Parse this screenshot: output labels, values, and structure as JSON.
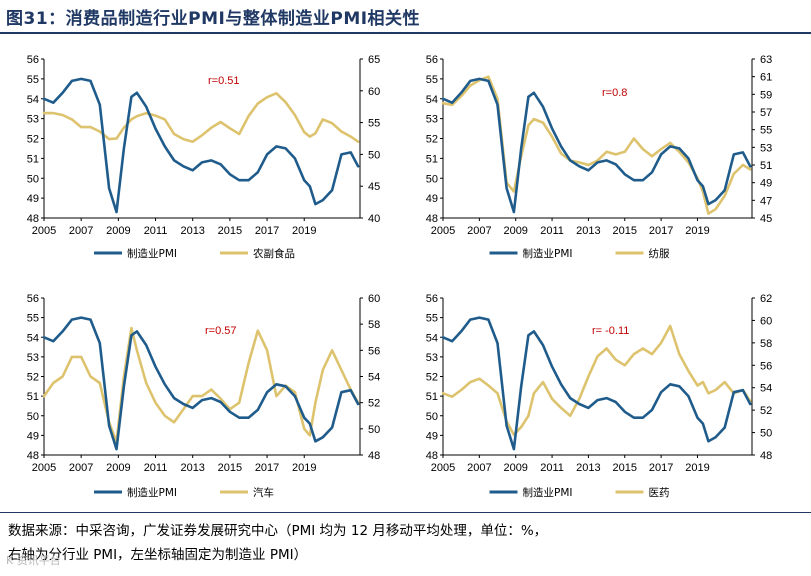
{
  "title": "图31：消费品制造行业PMI与整体制造业PMI相关性",
  "source_line1": "数据来源：中采咨询，广发证券发展研究中心（PMI 均为 12 月移动平均处理，单位：%，",
  "source_line2": "右轴为分行业 PMI，左坐标轴固定为制造业 PMI）",
  "watermark": "K 资讯平台",
  "colors": {
    "pmi": "#1f5c8c",
    "industry": "#ddc36e",
    "r_label": "#c00000"
  },
  "chart_data": [
    {
      "type": "line",
      "title": "",
      "correlation": "r=0.51",
      "x_ticks": [
        "2005",
        "2007",
        "2009",
        "2011",
        "2013",
        "2015",
        "2017",
        "2019"
      ],
      "x": [
        2005.0,
        2005.5,
        2006.0,
        2006.5,
        2007.0,
        2007.5,
        2008.0,
        2008.5,
        2008.9,
        2009.3,
        2009.7,
        2010.0,
        2010.5,
        2011.0,
        2011.5,
        2012.0,
        2012.5,
        2013.0,
        2013.5,
        2014.0,
        2014.5,
        2015.0,
        2015.5,
        2016.0,
        2016.5,
        2017.0,
        2017.5,
        2018.0,
        2018.5,
        2019.0,
        2019.3,
        2019.6,
        2020.0,
        2020.5,
        2021.0,
        2021.5,
        2021.9
      ],
      "left_axis": {
        "ylim": [
          48,
          56
        ],
        "ticks": [
          48,
          49,
          50,
          51,
          52,
          53,
          54,
          55,
          56
        ]
      },
      "right_axis": {
        "ylim": [
          40,
          65
        ],
        "ticks": [
          40,
          45,
          50,
          55,
          60,
          65
        ]
      },
      "series": [
        {
          "name": "制造业PMI",
          "axis": "left",
          "values": [
            54.0,
            53.8,
            54.3,
            54.9,
            55.0,
            54.9,
            53.7,
            49.5,
            48.3,
            51.5,
            54.1,
            54.3,
            53.6,
            52.5,
            51.6,
            50.9,
            50.6,
            50.4,
            50.8,
            50.9,
            50.7,
            50.2,
            49.9,
            49.9,
            50.3,
            51.2,
            51.6,
            51.5,
            51.0,
            49.9,
            49.6,
            48.7,
            48.9,
            49.4,
            51.2,
            51.3,
            50.6
          ]
        },
        {
          "name": "农副食品",
          "axis": "right",
          "values": [
            56.5,
            56.5,
            56.2,
            55.5,
            54.3,
            54.3,
            53.6,
            52.4,
            52.5,
            54.2,
            55.5,
            56.0,
            56.5,
            56.1,
            55.5,
            53.2,
            52.4,
            52.0,
            53.0,
            54.2,
            55.1,
            54.1,
            53.2,
            56.0,
            58.0,
            59.0,
            59.6,
            58.2,
            56.2,
            53.5,
            52.8,
            53.3,
            55.5,
            54.9,
            53.6,
            52.8,
            52.0
          ]
        }
      ],
      "legend": [
        "制造业PMI",
        "农副食品"
      ]
    },
    {
      "type": "line",
      "title": "",
      "correlation": "r=0.8",
      "x_ticks": [
        "2005",
        "2007",
        "2009",
        "2011",
        "2013",
        "2015",
        "2017",
        "2019"
      ],
      "x": [
        2005.0,
        2005.5,
        2006.0,
        2006.5,
        2007.0,
        2007.5,
        2008.0,
        2008.5,
        2008.9,
        2009.3,
        2009.7,
        2010.0,
        2010.5,
        2011.0,
        2011.5,
        2012.0,
        2012.5,
        2013.0,
        2013.5,
        2014.0,
        2014.5,
        2015.0,
        2015.5,
        2016.0,
        2016.5,
        2017.0,
        2017.5,
        2018.0,
        2018.5,
        2019.0,
        2019.3,
        2019.6,
        2020.0,
        2020.5,
        2021.0,
        2021.5,
        2021.9
      ],
      "left_axis": {
        "ylim": [
          48,
          56
        ],
        "ticks": [
          48,
          49,
          50,
          51,
          52,
          53,
          54,
          55,
          56
        ]
      },
      "right_axis": {
        "ylim": [
          45,
          63
        ],
        "ticks": [
          45,
          47,
          49,
          51,
          53,
          55,
          57,
          59,
          61,
          63
        ]
      },
      "series": [
        {
          "name": "制造业PMI",
          "axis": "left",
          "values": [
            54.0,
            53.8,
            54.3,
            54.9,
            55.0,
            54.9,
            53.7,
            49.5,
            48.3,
            51.5,
            54.1,
            54.3,
            53.6,
            52.5,
            51.6,
            50.9,
            50.6,
            50.4,
            50.8,
            50.9,
            50.7,
            50.2,
            49.9,
            49.9,
            50.3,
            51.2,
            51.6,
            51.5,
            51.0,
            49.9,
            49.6,
            48.7,
            48.9,
            49.4,
            51.2,
            51.3,
            50.6
          ]
        },
        {
          "name": "纺服",
          "axis": "right",
          "values": [
            58.0,
            57.8,
            58.8,
            60.0,
            60.6,
            61.0,
            58.5,
            49.0,
            48.0,
            52.0,
            55.5,
            56.2,
            55.8,
            54.2,
            52.3,
            51.5,
            51.3,
            51.0,
            51.5,
            52.5,
            52.2,
            52.5,
            54.0,
            52.8,
            52.0,
            52.8,
            53.5,
            52.5,
            51.3,
            49.5,
            48.0,
            45.5,
            46.0,
            47.5,
            50.0,
            51.0,
            50.5
          ]
        }
      ],
      "legend": [
        "制造业PMI",
        "纺服"
      ]
    },
    {
      "type": "line",
      "title": "",
      "correlation": "r=0.57",
      "x_ticks": [
        "2005",
        "2007",
        "2009",
        "2011",
        "2013",
        "2015",
        "2017",
        "2019"
      ],
      "x": [
        2005.0,
        2005.5,
        2006.0,
        2006.5,
        2007.0,
        2007.5,
        2008.0,
        2008.5,
        2008.9,
        2009.3,
        2009.7,
        2010.0,
        2010.5,
        2011.0,
        2011.5,
        2012.0,
        2012.5,
        2013.0,
        2013.5,
        2014.0,
        2014.5,
        2015.0,
        2015.5,
        2016.0,
        2016.5,
        2017.0,
        2017.5,
        2018.0,
        2018.5,
        2019.0,
        2019.3,
        2019.6,
        2020.0,
        2020.5,
        2021.0,
        2021.5,
        2021.9
      ],
      "left_axis": {
        "ylim": [
          48,
          56
        ],
        "ticks": [
          48,
          49,
          50,
          51,
          52,
          53,
          54,
          55,
          56
        ]
      },
      "right_axis": {
        "ylim": [
          48,
          60
        ],
        "ticks": [
          48,
          50,
          52,
          54,
          56,
          58,
          60
        ]
      },
      "series": [
        {
          "name": "制造业PMI",
          "axis": "left",
          "values": [
            54.0,
            53.8,
            54.3,
            54.9,
            55.0,
            54.9,
            53.7,
            49.5,
            48.3,
            51.5,
            54.1,
            54.3,
            53.6,
            52.5,
            51.6,
            50.9,
            50.6,
            50.4,
            50.8,
            50.9,
            50.7,
            50.2,
            49.9,
            49.9,
            50.3,
            51.2,
            51.6,
            51.5,
            51.0,
            49.9,
            49.6,
            48.7,
            48.9,
            49.4,
            51.2,
            51.3,
            50.6
          ]
        },
        {
          "name": "汽车",
          "axis": "right",
          "values": [
            52.5,
            53.5,
            54.0,
            55.5,
            55.5,
            54.0,
            53.5,
            50.5,
            49.0,
            54.0,
            57.7,
            56.0,
            53.5,
            52.0,
            51.0,
            50.5,
            51.5,
            52.5,
            52.5,
            53.0,
            52.3,
            51.5,
            52.0,
            55.0,
            57.5,
            56.0,
            52.5,
            53.3,
            52.8,
            50.0,
            49.5,
            52.0,
            54.5,
            56.0,
            54.5,
            53.0,
            52.0
          ]
        }
      ],
      "legend": [
        "制造业PMI",
        "汽车"
      ]
    },
    {
      "type": "line",
      "title": "",
      "correlation": "r= -0.11",
      "x_ticks": [
        "2005",
        "2007",
        "2009",
        "2011",
        "2013",
        "2015",
        "2017",
        "2019"
      ],
      "x": [
        2005.0,
        2005.5,
        2006.0,
        2006.5,
        2007.0,
        2007.5,
        2008.0,
        2008.5,
        2008.9,
        2009.3,
        2009.7,
        2010.0,
        2010.5,
        2011.0,
        2011.5,
        2012.0,
        2012.5,
        2013.0,
        2013.5,
        2014.0,
        2014.5,
        2015.0,
        2015.5,
        2016.0,
        2016.5,
        2017.0,
        2017.5,
        2018.0,
        2018.5,
        2019.0,
        2019.3,
        2019.6,
        2020.0,
        2020.5,
        2021.0,
        2021.5,
        2021.9
      ],
      "left_axis": {
        "ylim": [
          48,
          56
        ],
        "ticks": [
          48,
          49,
          50,
          51,
          52,
          53,
          54,
          55,
          56
        ]
      },
      "right_axis": {
        "ylim": [
          48,
          62
        ],
        "ticks": [
          48,
          50,
          52,
          54,
          56,
          58,
          60,
          62
        ]
      },
      "series": [
        {
          "name": "制造业PMI",
          "axis": "left",
          "values": [
            54.0,
            53.8,
            54.3,
            54.9,
            55.0,
            54.9,
            53.7,
            49.5,
            48.3,
            51.5,
            54.1,
            54.3,
            53.6,
            52.5,
            51.6,
            50.9,
            50.6,
            50.4,
            50.8,
            50.9,
            50.7,
            50.2,
            49.9,
            49.9,
            50.3,
            51.2,
            51.6,
            51.5,
            51.0,
            49.9,
            49.6,
            48.7,
            48.9,
            49.4,
            51.2,
            51.3,
            50.6
          ]
        },
        {
          "name": "医药",
          "axis": "right",
          "values": [
            53.5,
            53.2,
            53.8,
            54.5,
            54.8,
            54.2,
            53.5,
            51.0,
            49.8,
            50.5,
            51.5,
            53.5,
            54.5,
            53.0,
            52.2,
            51.5,
            53.0,
            55.0,
            56.8,
            57.5,
            56.5,
            56.0,
            57.0,
            57.5,
            57.0,
            58.0,
            59.5,
            57.0,
            55.5,
            54.2,
            54.5,
            53.5,
            53.8,
            54.5,
            53.5,
            53.8,
            52.8
          ]
        }
      ],
      "legend": [
        "制造业PMI",
        "医药"
      ]
    }
  ]
}
